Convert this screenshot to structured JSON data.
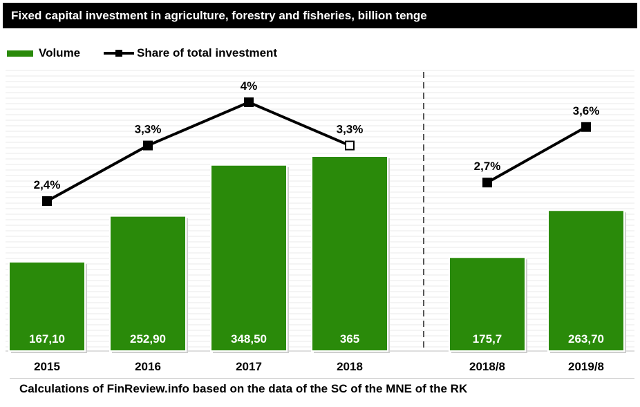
{
  "title": "Fixed capital investment in agriculture, forestry and fisheries, billion tenge",
  "legend": {
    "volume": "Volume",
    "share": "Share of total investment"
  },
  "colors": {
    "bar": "#2a8a0a",
    "line": "#000000",
    "title_bg": "#000000",
    "title_text": "#ffffff"
  },
  "footnote": "Calculations of  FinReview.info based on the data of the SC of the MNE of the RK",
  "chart_data": {
    "type": "bar",
    "categories": [
      "2015",
      "2016",
      "2017",
      "2018",
      "2018/8",
      "2019/8"
    ],
    "groups": [
      [
        "2015",
        "2016",
        "2017",
        "2018"
      ],
      [
        "2018/8",
        "2019/8"
      ]
    ],
    "series": [
      {
        "name": "Volume",
        "type": "bar",
        "values": [
          167.1,
          252.9,
          348.5,
          365,
          175.7,
          263.7
        ],
        "labels": [
          "167,10",
          "252,90",
          "348,50",
          "365",
          "175,7",
          "263,70"
        ]
      },
      {
        "name": "Share of total investment",
        "type": "line",
        "values": [
          2.4,
          3.3,
          4.0,
          3.3,
          2.7,
          3.6
        ],
        "labels": [
          "2,4%",
          "3,3%",
          "4%",
          "3,3%",
          "2,7%",
          "3,6%"
        ]
      }
    ],
    "gridlines": true,
    "legend_position": "top-left",
    "separator": "dashed line between 2018 and 2018/8"
  }
}
